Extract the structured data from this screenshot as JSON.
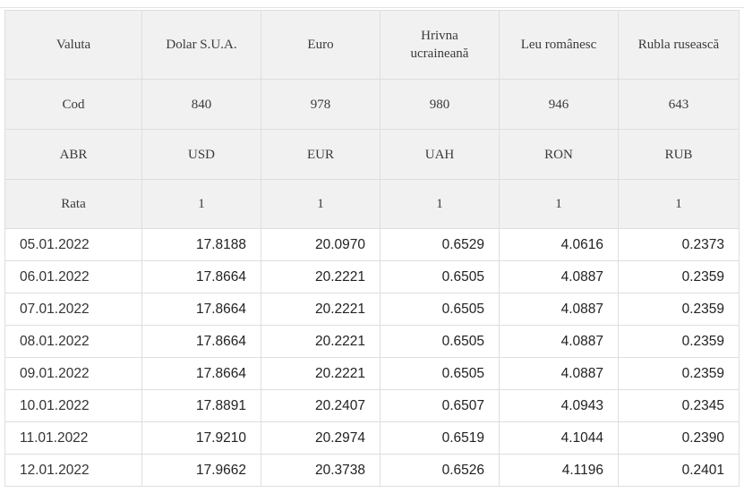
{
  "table": {
    "header_rows": [
      {
        "label": "Valuta",
        "values": [
          "Dolar S.U.A.",
          "Euro",
          "Hrivna ucraineană",
          "Leu românesc",
          "Rubla rusească"
        ]
      },
      {
        "label": "Cod",
        "values": [
          "840",
          "978",
          "980",
          "946",
          "643"
        ]
      },
      {
        "label": "ABR",
        "values": [
          "USD",
          "EUR",
          "UAH",
          "RON",
          "RUB"
        ]
      },
      {
        "label": "Rata",
        "values": [
          "1",
          "1",
          "1",
          "1",
          "1"
        ]
      }
    ],
    "rows": [
      {
        "date": "05.01.2022",
        "values": [
          "17.8188",
          "20.0970",
          "0.6529",
          "4.0616",
          "0.2373"
        ]
      },
      {
        "date": "06.01.2022",
        "values": [
          "17.8664",
          "20.2221",
          "0.6505",
          "4.0887",
          "0.2359"
        ]
      },
      {
        "date": "07.01.2022",
        "values": [
          "17.8664",
          "20.2221",
          "0.6505",
          "4.0887",
          "0.2359"
        ]
      },
      {
        "date": "08.01.2022",
        "values": [
          "17.8664",
          "20.2221",
          "0.6505",
          "4.0887",
          "0.2359"
        ]
      },
      {
        "date": "09.01.2022",
        "values": [
          "17.8664",
          "20.2221",
          "0.6505",
          "4.0887",
          "0.2359"
        ]
      },
      {
        "date": "10.01.2022",
        "values": [
          "17.8891",
          "20.2407",
          "0.6507",
          "4.0943",
          "0.2345"
        ]
      },
      {
        "date": "11.01.2022",
        "values": [
          "17.9210",
          "20.2974",
          "0.6519",
          "4.1044",
          "0.2390"
        ]
      },
      {
        "date": "12.01.2022",
        "values": [
          "17.9662",
          "20.3738",
          "0.6526",
          "4.1196",
          "0.2401"
        ]
      }
    ]
  }
}
